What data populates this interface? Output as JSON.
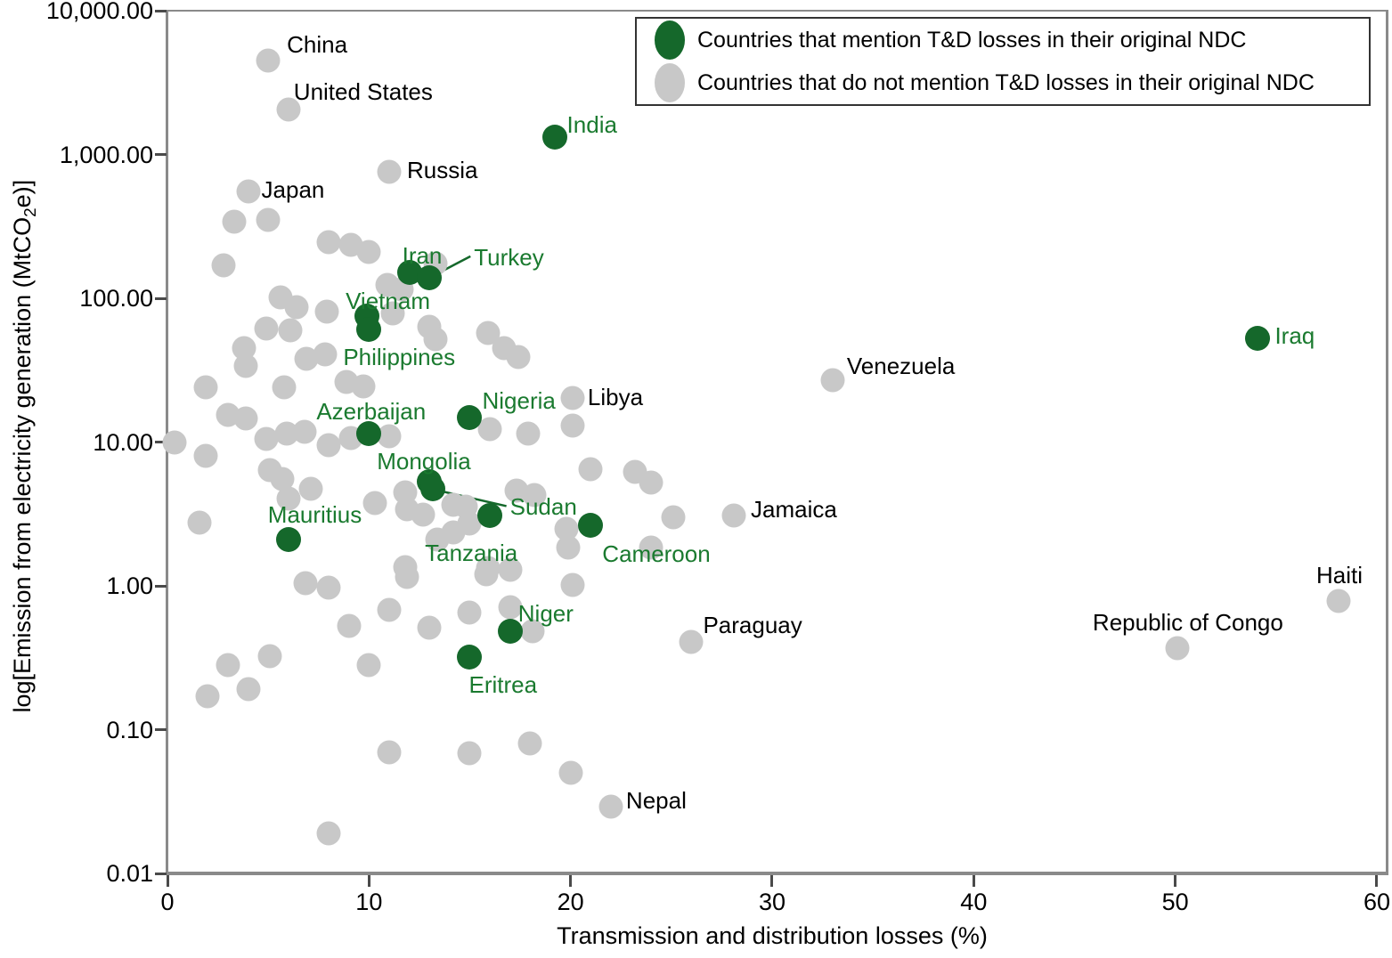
{
  "figure": {
    "background": "#ffffff",
    "colors": {
      "mention_dot": "#15682b",
      "no_mention_dot": "#c8c8c8",
      "mention_label": "#1a7a2f",
      "no_mention_label": "#000000",
      "axis_line": "#8a8a8a",
      "tick_mark": "#4a4a4a"
    }
  },
  "legend": {
    "items": [
      {
        "name": "mention",
        "color": "#15682b",
        "label": "Countries that mention T&D losses in their original NDC"
      },
      {
        "name": "no-mention",
        "color": "#c8c8c8",
        "label": "Countries that do not mention T&D losses in their original NDC"
      }
    ]
  },
  "axes": {
    "x": {
      "title": "Transmission and distribution losses (%)",
      "min": 0,
      "max": 60,
      "tick_values": [
        0,
        10,
        20,
        30,
        40,
        50,
        60
      ],
      "tick_labels": [
        "0",
        "10",
        "20",
        "30",
        "40",
        "50",
        "60"
      ]
    },
    "y": {
      "title_prefix": "log[Emission from electricity generation (MtCO",
      "title_sub": "2",
      "title_suffix": "e)]",
      "scale": "log",
      "min": 0.01,
      "max": 10000,
      "tick_values": [
        10000,
        1000,
        100,
        10,
        1,
        0.1,
        0.01
      ],
      "tick_labels": [
        "10,000.00",
        "1,000.00",
        "100.00",
        "10.00",
        "1.00",
        "0.10",
        "0.01"
      ]
    }
  },
  "chart_data": {
    "type": "scatter",
    "xlabel": "Transmission and distribution losses (%)",
    "ylabel": "log[Emission from electricity generation (MtCO2e)]",
    "xlim": [
      0,
      60
    ],
    "ylim": [
      0.01,
      10000
    ],
    "grid": false,
    "legend_position": "top-right",
    "series": [
      {
        "name": "Countries that mention T&D losses in their original NDC",
        "color": "#15682b",
        "labeled_points": [
          {
            "country": "India",
            "x": 19.2,
            "y": 1320,
            "ldx": 14,
            "ldy": -28
          },
          {
            "country": "Iran",
            "x": 12.0,
            "y": 151,
            "ldx": -8,
            "ldy": -33
          },
          {
            "country": "Turkey",
            "x": 13.0,
            "y": 139,
            "ldx": 50,
            "ldy": -37,
            "leader": true
          },
          {
            "country": "Vietnam",
            "x": 9.9,
            "y": 75,
            "ldx": -24,
            "ldy": -31
          },
          {
            "country": "Philippines",
            "x": 10.0,
            "y": 61,
            "ldx": -29,
            "ldy": 17
          },
          {
            "country": "Azerbaijan",
            "x": 10.0,
            "y": 11.4,
            "ldx": -59,
            "ldy": -39
          },
          {
            "country": "Nigeria",
            "x": 15.0,
            "y": 14.7,
            "ldx": 14,
            "ldy": -33
          },
          {
            "country": "Mongolia",
            "x": 13.0,
            "y": 5.3,
            "ldx": -59,
            "ldy": -37
          },
          {
            "country": "Sudan",
            "x": 13.15,
            "y": 4.7,
            "ldx": 87,
            "ldy": 6,
            "leader": true
          },
          {
            "country": "Tanzania",
            "x": 16.0,
            "y": 3.1,
            "ldx": -73,
            "ldy": 28
          },
          {
            "country": "Mauritius",
            "x": 6.0,
            "y": 2.1,
            "ldx": -23,
            "ldy": -42
          },
          {
            "country": "Cameroon",
            "x": 21.0,
            "y": 2.65,
            "ldx": 13,
            "ldy": 18
          },
          {
            "country": "Niger",
            "x": 17.0,
            "y": 0.48,
            "ldx": 9,
            "ldy": -34
          },
          {
            "country": "Eritrea",
            "x": 15.0,
            "y": 0.32,
            "ldx": -1,
            "ldy": 17
          },
          {
            "country": "Iraq",
            "x": 54.1,
            "y": 53,
            "ldx": 19,
            "ldy": -17
          }
        ]
      },
      {
        "name": "Countries that do not mention T&D losses in their original NDC",
        "color": "#c8c8c8",
        "labeled_points": [
          {
            "country": "China",
            "x": 5.0,
            "y": 4500,
            "ldx": 21,
            "ldy": -32
          },
          {
            "country": "United States",
            "x": 6.0,
            "y": 2060,
            "ldx": 6,
            "ldy": -34
          },
          {
            "country": "Japan",
            "x": 4.0,
            "y": 553,
            "ldx": 15,
            "ldy": -16
          },
          {
            "country": "Russia",
            "x": 11.0,
            "y": 757,
            "ldx": 20,
            "ldy": -16
          },
          {
            "country": "Libya",
            "x": 20.1,
            "y": 20.3,
            "ldx": 17,
            "ldy": -15
          },
          {
            "country": "Venezuela",
            "x": 33.0,
            "y": 27,
            "ldx": 16,
            "ldy": -30
          },
          {
            "country": "Jamaica",
            "x": 28.1,
            "y": 3.1,
            "ldx": 19,
            "ldy": -21
          },
          {
            "country": "Paraguay",
            "x": 26.0,
            "y": 0.41,
            "ldx": 13,
            "ldy": -33
          },
          {
            "country": "Nepal",
            "x": 22.0,
            "y": 0.029,
            "ldx": 17,
            "ldy": -21
          },
          {
            "country": "Republic of Congo",
            "x": 50.1,
            "y": 0.37,
            "ldx": -95,
            "ldy": -43
          },
          {
            "country": "Haiti",
            "x": 58.1,
            "y": 0.78,
            "ldx": -25,
            "ldy": -43
          }
        ],
        "unlabeled_points": [
          [
            3.3,
            340
          ],
          [
            5.0,
            350
          ],
          [
            2.8,
            170
          ],
          [
            8.0,
            245
          ],
          [
            9.1,
            235
          ],
          [
            10.0,
            210
          ],
          [
            13.3,
            175
          ],
          [
            10.9,
            124
          ],
          [
            11.6,
            115
          ],
          [
            5.6,
            102
          ],
          [
            6.4,
            87
          ],
          [
            7.9,
            81
          ],
          [
            11.2,
            79
          ],
          [
            13.0,
            63
          ],
          [
            13.3,
            52
          ],
          [
            15.9,
            57
          ],
          [
            16.7,
            45
          ],
          [
            17.4,
            39
          ],
          [
            4.9,
            62
          ],
          [
            6.1,
            60
          ],
          [
            3.8,
            45
          ],
          [
            3.9,
            34
          ],
          [
            6.9,
            38
          ],
          [
            7.8,
            41
          ],
          [
            5.8,
            24
          ],
          [
            8.9,
            26
          ],
          [
            9.7,
            24.5
          ],
          [
            1.9,
            24
          ],
          [
            3.0,
            15.5
          ],
          [
            3.9,
            14.6
          ],
          [
            4.9,
            10.5
          ],
          [
            5.9,
            11.4
          ],
          [
            6.8,
            11.7
          ],
          [
            8.0,
            9.5
          ],
          [
            9.1,
            10.7
          ],
          [
            11.0,
            11.0
          ],
          [
            1.9,
            8.0
          ],
          [
            0.35,
            9.9
          ],
          [
            5.1,
            6.35
          ],
          [
            5.7,
            5.5
          ],
          [
            7.1,
            4.7
          ],
          [
            6.0,
            4.05
          ],
          [
            10.3,
            3.75
          ],
          [
            11.8,
            4.5
          ],
          [
            11.9,
            3.4
          ],
          [
            12.7,
            3.15
          ],
          [
            14.2,
            3.65
          ],
          [
            14.8,
            3.55
          ],
          [
            13.4,
            2.1
          ],
          [
            14.2,
            2.35
          ],
          [
            15.0,
            2.7
          ],
          [
            16.0,
            12.3
          ],
          [
            17.9,
            11.4
          ],
          [
            20.1,
            13.0
          ],
          [
            17.3,
            4.6
          ],
          [
            18.2,
            4.3
          ],
          [
            21.0,
            6.5
          ],
          [
            23.2,
            6.2
          ],
          [
            24.0,
            5.2
          ],
          [
            25.1,
            3.0
          ],
          [
            19.8,
            2.5
          ],
          [
            19.9,
            1.85
          ],
          [
            24.0,
            1.85
          ],
          [
            15.9,
            1.33
          ],
          [
            17.0,
            1.3
          ],
          [
            11.8,
            1.35
          ],
          [
            20.1,
            1.02
          ],
          [
            1.6,
            2.75
          ],
          [
            6.85,
            1.04
          ],
          [
            8.0,
            0.97
          ],
          [
            11.9,
            1.15
          ],
          [
            15.8,
            1.2
          ],
          [
            11.0,
            0.68
          ],
          [
            9.0,
            0.53
          ],
          [
            13.0,
            0.51
          ],
          [
            15.0,
            0.65
          ],
          [
            17.0,
            0.71
          ],
          [
            18.1,
            0.48
          ],
          [
            5.1,
            0.325
          ],
          [
            3.0,
            0.28
          ],
          [
            4.0,
            0.19
          ],
          [
            2.0,
            0.17
          ],
          [
            10.0,
            0.28
          ],
          [
            11.0,
            0.07
          ],
          [
            15.0,
            0.069
          ],
          [
            18.0,
            0.08
          ],
          [
            20.0,
            0.05
          ],
          [
            8.0,
            0.019
          ]
        ]
      }
    ]
  }
}
